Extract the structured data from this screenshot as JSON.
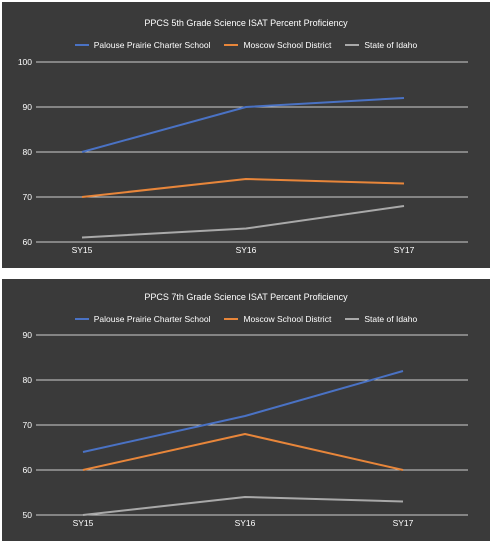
{
  "colors": {
    "school": "#4a72c4",
    "district": "#e8863a",
    "state": "#a9a9a9",
    "background": "#3a3a3a",
    "grid": "#ffffff"
  },
  "chart_data": [
    {
      "type": "line",
      "title": "PPCS 5th Grade Science ISAT Percent Proficiency",
      "categories": [
        "SY15",
        "SY16",
        "SY17"
      ],
      "yticks": [
        "60",
        "70",
        "80",
        "90",
        "100"
      ],
      "ylim": [
        60,
        100
      ],
      "legend_position": "top",
      "grid": true,
      "series": [
        {
          "name": "Palouse Prairie Charter School",
          "color": "#4a72c4",
          "values": [
            80,
            90,
            92
          ]
        },
        {
          "name": "Moscow School District",
          "color": "#e8863a",
          "values": [
            70,
            74,
            73
          ]
        },
        {
          "name": "State of Idaho",
          "color": "#a9a9a9",
          "values": [
            61,
            63,
            68
          ]
        }
      ]
    },
    {
      "type": "line",
      "title": "PPCS 7th Grade Science ISAT Percent Proficiency",
      "categories": [
        "SY15",
        "SY16",
        "SY17"
      ],
      "yticks": [
        "50",
        "60",
        "70",
        "80",
        "90"
      ],
      "ylim": [
        50,
        90
      ],
      "legend_position": "top",
      "grid": true,
      "series": [
        {
          "name": "Palouse Prairie Charter School",
          "color": "#4a72c4",
          "values": [
            64,
            72,
            82
          ]
        },
        {
          "name": "Moscow School District",
          "color": "#e8863a",
          "values": [
            60,
            68,
            60
          ]
        },
        {
          "name": "State of Idaho",
          "color": "#a9a9a9",
          "values": [
            50,
            54,
            53
          ]
        }
      ]
    }
  ]
}
